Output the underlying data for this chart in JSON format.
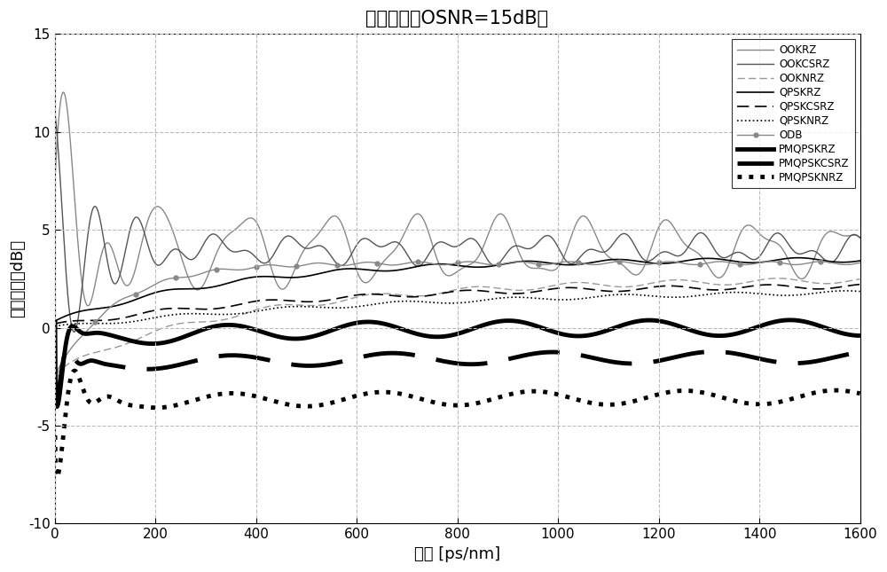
{
  "title": "特征曲线（OSNR=15dB）",
  "xlabel": "色散 [ps/nm]",
  "ylabel": "输出信号（dB）",
  "xlim": [
    0,
    1600
  ],
  "ylim": [
    -10,
    15
  ],
  "xticks": [
    0,
    200,
    400,
    600,
    800,
    1000,
    1200,
    1400,
    1600
  ],
  "yticks": [
    -10,
    -5,
    0,
    5,
    10,
    15
  ],
  "grid_color": "#aaaaaa",
  "background_color": "#ffffff"
}
